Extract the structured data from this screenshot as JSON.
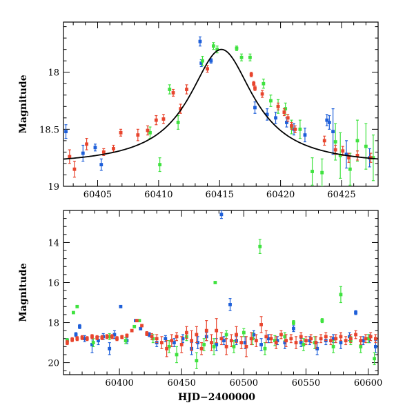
{
  "chart_data": [
    {
      "type": "scatter",
      "title": "",
      "xlabel": "",
      "ylabel": "Magnitude",
      "xlim": [
        60402.2,
        60428.0
      ],
      "ylim": [
        19.0,
        17.56
      ],
      "y_inverted": true,
      "xticks": [
        60405,
        60410,
        60415,
        60420,
        60425
      ],
      "xtick_labels": [
        "60405",
        "60410",
        "60415",
        "60420",
        "60425"
      ],
      "yticks": [
        18,
        18.5,
        19
      ],
      "ytick_labels": [
        "18",
        "18.5",
        "19"
      ],
      "grid": false,
      "legend": "none",
      "model_curve": {
        "color": "#000000",
        "peak_x": 60415.15,
        "peak_mag": 17.8,
        "baseline_mag": 18.82,
        "x": [
          60402.2,
          60404,
          60406,
          60408,
          60410,
          60411,
          60412,
          60413,
          60414,
          60415.15,
          60416,
          60417,
          60418,
          60419,
          60420,
          60422,
          60424,
          60426,
          60428
        ],
        "y": [
          18.75,
          18.72,
          18.68,
          18.6,
          18.45,
          18.33,
          18.18,
          18.0,
          17.86,
          17.8,
          17.85,
          17.98,
          18.15,
          18.3,
          18.42,
          18.59,
          18.67,
          18.72,
          18.75
        ]
      },
      "series": [
        {
          "color": "#1e5fd9",
          "x": [
            60402.4,
            60403.8,
            60404.8,
            60405.3,
            60413.4,
            60413.5,
            60414.3,
            60417.9,
            60418.9,
            60419.6,
            60420.5,
            60421.1,
            60422.0,
            60423.8,
            60424.0,
            60424.3,
            60425.4,
            60427.3
          ],
          "y": [
            18.52,
            18.71,
            18.66,
            18.81,
            17.73,
            17.92,
            17.9,
            18.31,
            18.37,
            18.4,
            18.44,
            18.5,
            18.55,
            18.42,
            18.44,
            18.52,
            18.72,
            18.75
          ],
          "err": [
            0.06,
            0.07,
            0.03,
            0.05,
            0.04,
            0.03,
            0.02,
            0.05,
            0.05,
            0.05,
            0.04,
            0.05,
            0.06,
            0.05,
            0.06,
            0.2,
            0.12,
            0.08
          ]
        },
        {
          "color": "#3fe23f",
          "x": [
            60409.3,
            60410.1,
            60410.9,
            60411.6,
            60413.6,
            60414.5,
            60414.8,
            60416.4,
            60416.8,
            60417.5,
            60418.6,
            60419.2,
            60419.8,
            60420.4,
            60420.9,
            60421.6,
            60422.6,
            60423.4,
            60424.5,
            60424.9,
            60425.7,
            60426.3,
            60427.0,
            60427.6
          ],
          "y": [
            18.53,
            18.81,
            18.15,
            18.44,
            17.9,
            17.77,
            17.8,
            17.79,
            17.87,
            17.87,
            18.1,
            18.25,
            18.3,
            18.32,
            18.48,
            18.5,
            18.87,
            18.88,
            18.61,
            18.73,
            18.85,
            18.6,
            18.65,
            18.75
          ],
          "err": [
            0.05,
            0.06,
            0.04,
            0.06,
            0.04,
            0.03,
            0.03,
            0.02,
            0.03,
            0.03,
            0.04,
            0.05,
            0.06,
            0.05,
            0.06,
            0.08,
            0.12,
            0.12,
            0.16,
            0.2,
            0.14,
            0.18,
            0.2,
            0.2
          ]
        },
        {
          "color": "#e8452e",
          "x": [
            60402.7,
            60403.1,
            60404.1,
            60405.5,
            60406.3,
            60406.9,
            60408.3,
            60409.1,
            60409.8,
            60410.4,
            60411.2,
            60411.8,
            60412.3,
            60414.0,
            60417.6,
            60417.8,
            60417.9,
            60418.5,
            60419.8,
            60420.3,
            60420.6,
            60420.9,
            60421.2,
            60423.6,
            60424.5,
            60425.1,
            60425.6,
            60426.3,
            60427.4
          ],
          "y": [
            18.74,
            18.85,
            18.63,
            18.7,
            18.67,
            18.53,
            18.55,
            18.51,
            18.42,
            18.41,
            18.18,
            18.32,
            18.15,
            17.97,
            18.02,
            18.1,
            18.14,
            18.19,
            18.3,
            18.35,
            18.4,
            18.47,
            18.5,
            18.6,
            18.68,
            18.69,
            18.75,
            18.73,
            18.75
          ],
          "err": [
            0.06,
            0.07,
            0.05,
            0.03,
            0.03,
            0.03,
            0.05,
            0.04,
            0.04,
            0.04,
            0.03,
            0.04,
            0.04,
            0.03,
            0.02,
            0.02,
            0.02,
            0.03,
            0.03,
            0.03,
            0.03,
            0.03,
            0.03,
            0.04,
            0.04,
            0.04,
            0.04,
            0.04,
            0.04
          ]
        }
      ]
    },
    {
      "type": "scatter",
      "title": "",
      "xlabel": "HJD−2400000",
      "ylabel": "Magnitude",
      "xlim": [
        60355.0,
        60608.0
      ],
      "ylim": [
        20.6,
        12.4
      ],
      "y_inverted": true,
      "xticks": [
        60400,
        60450,
        60500,
        60550,
        60600
      ],
      "xtick_labels": [
        "60400",
        "60450",
        "60500",
        "60550",
        "60600"
      ],
      "yticks": [
        14,
        16,
        18,
        20
      ],
      "ytick_labels": [
        "14",
        "16",
        "18",
        "20"
      ],
      "grid": false,
      "legend": "none",
      "series": [
        {
          "color": "#1e5fd9",
          "x": [
            60358,
            60365,
            60368,
            60372,
            60378,
            60383,
            60387,
            60392,
            60396,
            60401,
            60406,
            60413,
            60417,
            60424,
            60430,
            60437,
            60444,
            60451,
            60458,
            60463,
            60470,
            60478,
            60482,
            60484,
            60489,
            60494,
            60501,
            60508,
            60514,
            60520,
            60527,
            60533,
            60540,
            60546,
            60553,
            60559,
            60566,
            60572,
            60578,
            60585,
            60590,
            60596,
            60601,
            60606
          ],
          "y": [
            18.9,
            18.6,
            18.2,
            18.8,
            19.1,
            18.9,
            18.7,
            19.3,
            18.6,
            17.2,
            18.9,
            17.9,
            18.3,
            18.6,
            19.0,
            18.8,
            19.0,
            18.8,
            19.3,
            19.0,
            18.7,
            19.1,
            12.6,
            18.9,
            17.1,
            18.9,
            19.0,
            18.6,
            19.1,
            18.8,
            18.9,
            19.0,
            18.3,
            19.0,
            18.9,
            19.3,
            18.9,
            18.8,
            19.0,
            18.7,
            17.5,
            18.9,
            18.8,
            19.2
          ],
          "err": [
            0.1,
            0.1,
            0.1,
            0.15,
            0.4,
            0.2,
            0.15,
            0.3,
            0.2,
            0.05,
            0.15,
            0.05,
            0.05,
            0.1,
            0.2,
            0.15,
            0.2,
            0.2,
            0.3,
            0.3,
            0.2,
            0.3,
            0.2,
            0.2,
            0.3,
            0.2,
            0.3,
            0.2,
            0.3,
            0.2,
            0.2,
            0.3,
            0.15,
            0.2,
            0.2,
            0.3,
            0.2,
            0.2,
            0.3,
            0.2,
            0.1,
            0.2,
            0.2,
            0.3
          ]
        },
        {
          "color": "#3fe23f",
          "x": [
            60358,
            60363,
            60366,
            60379,
            60392,
            60405,
            60412,
            60416,
            60427,
            60440,
            60446,
            60454,
            60462,
            60468,
            60476,
            60477,
            60486,
            60492,
            60500,
            60507,
            60513,
            60517,
            60525,
            60533,
            60540,
            60548,
            60557,
            60563,
            60572,
            60578,
            60586,
            60594,
            60600,
            60605
          ],
          "y": [
            18.9,
            17.5,
            17.2,
            19.0,
            18.7,
            18.9,
            18.2,
            17.9,
            18.8,
            19.2,
            19.6,
            18.7,
            19.9,
            19.1,
            19.2,
            16.0,
            18.6,
            19.2,
            18.5,
            18.8,
            14.2,
            19.3,
            18.9,
            18.7,
            18.0,
            19.1,
            19.0,
            17.9,
            19.2,
            16.6,
            18.9,
            19.2,
            18.8,
            19.8
          ],
          "err": [
            0.1,
            0.05,
            0.05,
            0.2,
            0.15,
            0.15,
            0.05,
            0.05,
            0.2,
            0.3,
            0.4,
            0.2,
            0.4,
            0.3,
            0.4,
            0.05,
            0.2,
            0.3,
            0.2,
            0.3,
            0.35,
            0.3,
            0.25,
            0.2,
            0.1,
            0.3,
            0.3,
            0.1,
            0.3,
            0.4,
            0.2,
            0.3,
            0.2,
            0.3
          ]
        },
        {
          "color": "#e8452e",
          "x": [
            60358,
            60362,
            60366,
            60370,
            60374,
            60378,
            60382,
            60386,
            60390,
            60394,
            60398,
            60402,
            60406,
            60410,
            60414,
            60418,
            60422,
            60426,
            60430,
            60434,
            60438,
            60442,
            60446,
            60450,
            60454,
            60458,
            60462,
            60466,
            60470,
            60474,
            60478,
            60482,
            60486,
            60490,
            60494,
            60498,
            60502,
            60506,
            60510,
            60514,
            60518,
            60522,
            60526,
            60530,
            60534,
            60538,
            60542,
            60546,
            60550,
            60554,
            60558,
            60562,
            60566,
            60570,
            60574,
            60578,
            60582,
            60586,
            60590,
            60594,
            60598,
            60602,
            60606
          ],
          "y": [
            19.0,
            18.85,
            18.8,
            18.75,
            18.8,
            18.7,
            18.75,
            18.75,
            18.7,
            18.7,
            18.8,
            18.72,
            18.65,
            18.4,
            17.9,
            18.15,
            18.55,
            18.7,
            18.8,
            19.0,
            19.3,
            18.9,
            18.7,
            19.1,
            18.5,
            18.9,
            18.6,
            19.3,
            18.4,
            19.0,
            18.4,
            18.8,
            19.2,
            18.9,
            18.6,
            19.0,
            19.2,
            18.8,
            18.9,
            18.1,
            18.7,
            18.8,
            19.0,
            18.6,
            18.9,
            18.8,
            19.0,
            18.7,
            18.9,
            18.8,
            19.0,
            18.8,
            18.7,
            18.9,
            18.8,
            18.7,
            18.9,
            18.8,
            18.6,
            18.9,
            18.8,
            18.7,
            18.8
          ],
          "err": [
            0.1,
            0.1,
            0.1,
            0.1,
            0.1,
            0.1,
            0.1,
            0.1,
            0.1,
            0.1,
            0.1,
            0.08,
            0.08,
            0.05,
            0.05,
            0.06,
            0.1,
            0.15,
            0.2,
            0.3,
            0.4,
            0.3,
            0.2,
            0.4,
            0.3,
            0.5,
            0.4,
            0.3,
            0.5,
            0.4,
            0.6,
            0.3,
            0.4,
            0.3,
            0.4,
            0.3,
            0.5,
            0.3,
            0.3,
            0.4,
            0.3,
            0.2,
            0.3,
            0.2,
            0.3,
            0.2,
            0.3,
            0.2,
            0.2,
            0.2,
            0.3,
            0.2,
            0.2,
            0.2,
            0.2,
            0.2,
            0.2,
            0.2,
            0.2,
            0.2,
            0.2,
            0.2,
            0.2
          ]
        }
      ]
    }
  ]
}
